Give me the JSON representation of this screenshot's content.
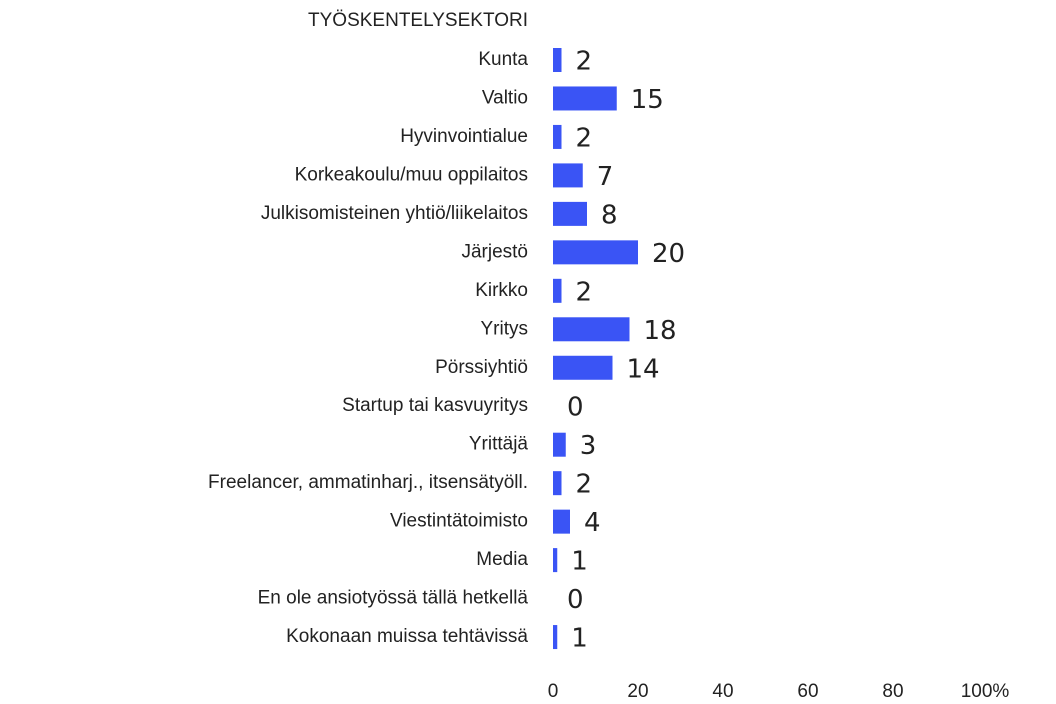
{
  "chart_data": {
    "type": "bar",
    "orientation": "horizontal",
    "title": "TYÖSKENTELYSEKTORI",
    "categories": [
      "Kunta",
      "Valtio",
      "Hyvinvointialue",
      "Korkeakoulu/muu oppilaitos",
      "Julkisomisteinen yhtiö/liikelaitos",
      "Järjestö",
      "Kirkko",
      "Yritys",
      "Pörssiyhtiö",
      "Startup tai kasvuyritys",
      "Yrittäjä",
      "Freelancer, ammatinharj., itsensätyöll.",
      "Viestintätoimisto",
      "Media",
      "En ole ansiotyössä tällä hetkellä",
      "Kokonaan muissa tehtävissä"
    ],
    "values": [
      2,
      15,
      2,
      7,
      8,
      20,
      2,
      18,
      14,
      0,
      3,
      2,
      4,
      1,
      0,
      1
    ],
    "color": "#3a54f5",
    "xlim": [
      0,
      100
    ],
    "xticks": [
      0,
      20,
      40,
      60,
      80,
      {
        "value": 100,
        "label": "100%"
      }
    ]
  }
}
